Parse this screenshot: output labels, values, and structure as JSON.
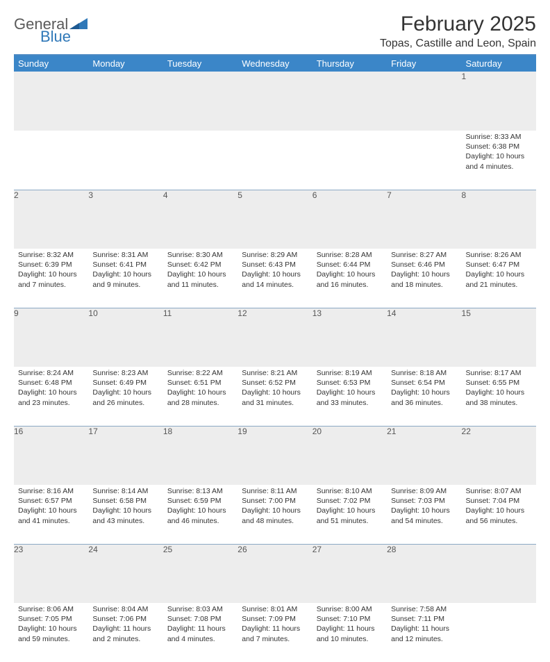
{
  "logo": {
    "word1": "General",
    "word2": "Blue"
  },
  "title": "February 2025",
  "location": "Topas, Castille and Leon, Spain",
  "colors": {
    "header_bar": "#3b86c8",
    "header_rule": "#4a88c2",
    "daynum_bg": "#ededed",
    "week_sep": "#355e8a",
    "logo_gray": "#5a5a5a",
    "logo_blue": "#2f78b8"
  },
  "day_headers": [
    "Sunday",
    "Monday",
    "Tuesday",
    "Wednesday",
    "Thursday",
    "Friday",
    "Saturday"
  ],
  "weeks": [
    [
      {
        "n": "",
        "sunrise": "",
        "sunset": "",
        "daylight": ""
      },
      {
        "n": "",
        "sunrise": "",
        "sunset": "",
        "daylight": ""
      },
      {
        "n": "",
        "sunrise": "",
        "sunset": "",
        "daylight": ""
      },
      {
        "n": "",
        "sunrise": "",
        "sunset": "",
        "daylight": ""
      },
      {
        "n": "",
        "sunrise": "",
        "sunset": "",
        "daylight": ""
      },
      {
        "n": "",
        "sunrise": "",
        "sunset": "",
        "daylight": ""
      },
      {
        "n": "1",
        "sunrise": "Sunrise: 8:33 AM",
        "sunset": "Sunset: 6:38 PM",
        "daylight": "Daylight: 10 hours and 4 minutes."
      }
    ],
    [
      {
        "n": "2",
        "sunrise": "Sunrise: 8:32 AM",
        "sunset": "Sunset: 6:39 PM",
        "daylight": "Daylight: 10 hours and 7 minutes."
      },
      {
        "n": "3",
        "sunrise": "Sunrise: 8:31 AM",
        "sunset": "Sunset: 6:41 PM",
        "daylight": "Daylight: 10 hours and 9 minutes."
      },
      {
        "n": "4",
        "sunrise": "Sunrise: 8:30 AM",
        "sunset": "Sunset: 6:42 PM",
        "daylight": "Daylight: 10 hours and 11 minutes."
      },
      {
        "n": "5",
        "sunrise": "Sunrise: 8:29 AM",
        "sunset": "Sunset: 6:43 PM",
        "daylight": "Daylight: 10 hours and 14 minutes."
      },
      {
        "n": "6",
        "sunrise": "Sunrise: 8:28 AM",
        "sunset": "Sunset: 6:44 PM",
        "daylight": "Daylight: 10 hours and 16 minutes."
      },
      {
        "n": "7",
        "sunrise": "Sunrise: 8:27 AM",
        "sunset": "Sunset: 6:46 PM",
        "daylight": "Daylight: 10 hours and 18 minutes."
      },
      {
        "n": "8",
        "sunrise": "Sunrise: 8:26 AM",
        "sunset": "Sunset: 6:47 PM",
        "daylight": "Daylight: 10 hours and 21 minutes."
      }
    ],
    [
      {
        "n": "9",
        "sunrise": "Sunrise: 8:24 AM",
        "sunset": "Sunset: 6:48 PM",
        "daylight": "Daylight: 10 hours and 23 minutes."
      },
      {
        "n": "10",
        "sunrise": "Sunrise: 8:23 AM",
        "sunset": "Sunset: 6:49 PM",
        "daylight": "Daylight: 10 hours and 26 minutes."
      },
      {
        "n": "11",
        "sunrise": "Sunrise: 8:22 AM",
        "sunset": "Sunset: 6:51 PM",
        "daylight": "Daylight: 10 hours and 28 minutes."
      },
      {
        "n": "12",
        "sunrise": "Sunrise: 8:21 AM",
        "sunset": "Sunset: 6:52 PM",
        "daylight": "Daylight: 10 hours and 31 minutes."
      },
      {
        "n": "13",
        "sunrise": "Sunrise: 8:19 AM",
        "sunset": "Sunset: 6:53 PM",
        "daylight": "Daylight: 10 hours and 33 minutes."
      },
      {
        "n": "14",
        "sunrise": "Sunrise: 8:18 AM",
        "sunset": "Sunset: 6:54 PM",
        "daylight": "Daylight: 10 hours and 36 minutes."
      },
      {
        "n": "15",
        "sunrise": "Sunrise: 8:17 AM",
        "sunset": "Sunset: 6:55 PM",
        "daylight": "Daylight: 10 hours and 38 minutes."
      }
    ],
    [
      {
        "n": "16",
        "sunrise": "Sunrise: 8:16 AM",
        "sunset": "Sunset: 6:57 PM",
        "daylight": "Daylight: 10 hours and 41 minutes."
      },
      {
        "n": "17",
        "sunrise": "Sunrise: 8:14 AM",
        "sunset": "Sunset: 6:58 PM",
        "daylight": "Daylight: 10 hours and 43 minutes."
      },
      {
        "n": "18",
        "sunrise": "Sunrise: 8:13 AM",
        "sunset": "Sunset: 6:59 PM",
        "daylight": "Daylight: 10 hours and 46 minutes."
      },
      {
        "n": "19",
        "sunrise": "Sunrise: 8:11 AM",
        "sunset": "Sunset: 7:00 PM",
        "daylight": "Daylight: 10 hours and 48 minutes."
      },
      {
        "n": "20",
        "sunrise": "Sunrise: 8:10 AM",
        "sunset": "Sunset: 7:02 PM",
        "daylight": "Daylight: 10 hours and 51 minutes."
      },
      {
        "n": "21",
        "sunrise": "Sunrise: 8:09 AM",
        "sunset": "Sunset: 7:03 PM",
        "daylight": "Daylight: 10 hours and 54 minutes."
      },
      {
        "n": "22",
        "sunrise": "Sunrise: 8:07 AM",
        "sunset": "Sunset: 7:04 PM",
        "daylight": "Daylight: 10 hours and 56 minutes."
      }
    ],
    [
      {
        "n": "23",
        "sunrise": "Sunrise: 8:06 AM",
        "sunset": "Sunset: 7:05 PM",
        "daylight": "Daylight: 10 hours and 59 minutes."
      },
      {
        "n": "24",
        "sunrise": "Sunrise: 8:04 AM",
        "sunset": "Sunset: 7:06 PM",
        "daylight": "Daylight: 11 hours and 2 minutes."
      },
      {
        "n": "25",
        "sunrise": "Sunrise: 8:03 AM",
        "sunset": "Sunset: 7:08 PM",
        "daylight": "Daylight: 11 hours and 4 minutes."
      },
      {
        "n": "26",
        "sunrise": "Sunrise: 8:01 AM",
        "sunset": "Sunset: 7:09 PM",
        "daylight": "Daylight: 11 hours and 7 minutes."
      },
      {
        "n": "27",
        "sunrise": "Sunrise: 8:00 AM",
        "sunset": "Sunset: 7:10 PM",
        "daylight": "Daylight: 11 hours and 10 minutes."
      },
      {
        "n": "28",
        "sunrise": "Sunrise: 7:58 AM",
        "sunset": "Sunset: 7:11 PM",
        "daylight": "Daylight: 11 hours and 12 minutes."
      },
      {
        "n": "",
        "sunrise": "",
        "sunset": "",
        "daylight": ""
      }
    ]
  ]
}
